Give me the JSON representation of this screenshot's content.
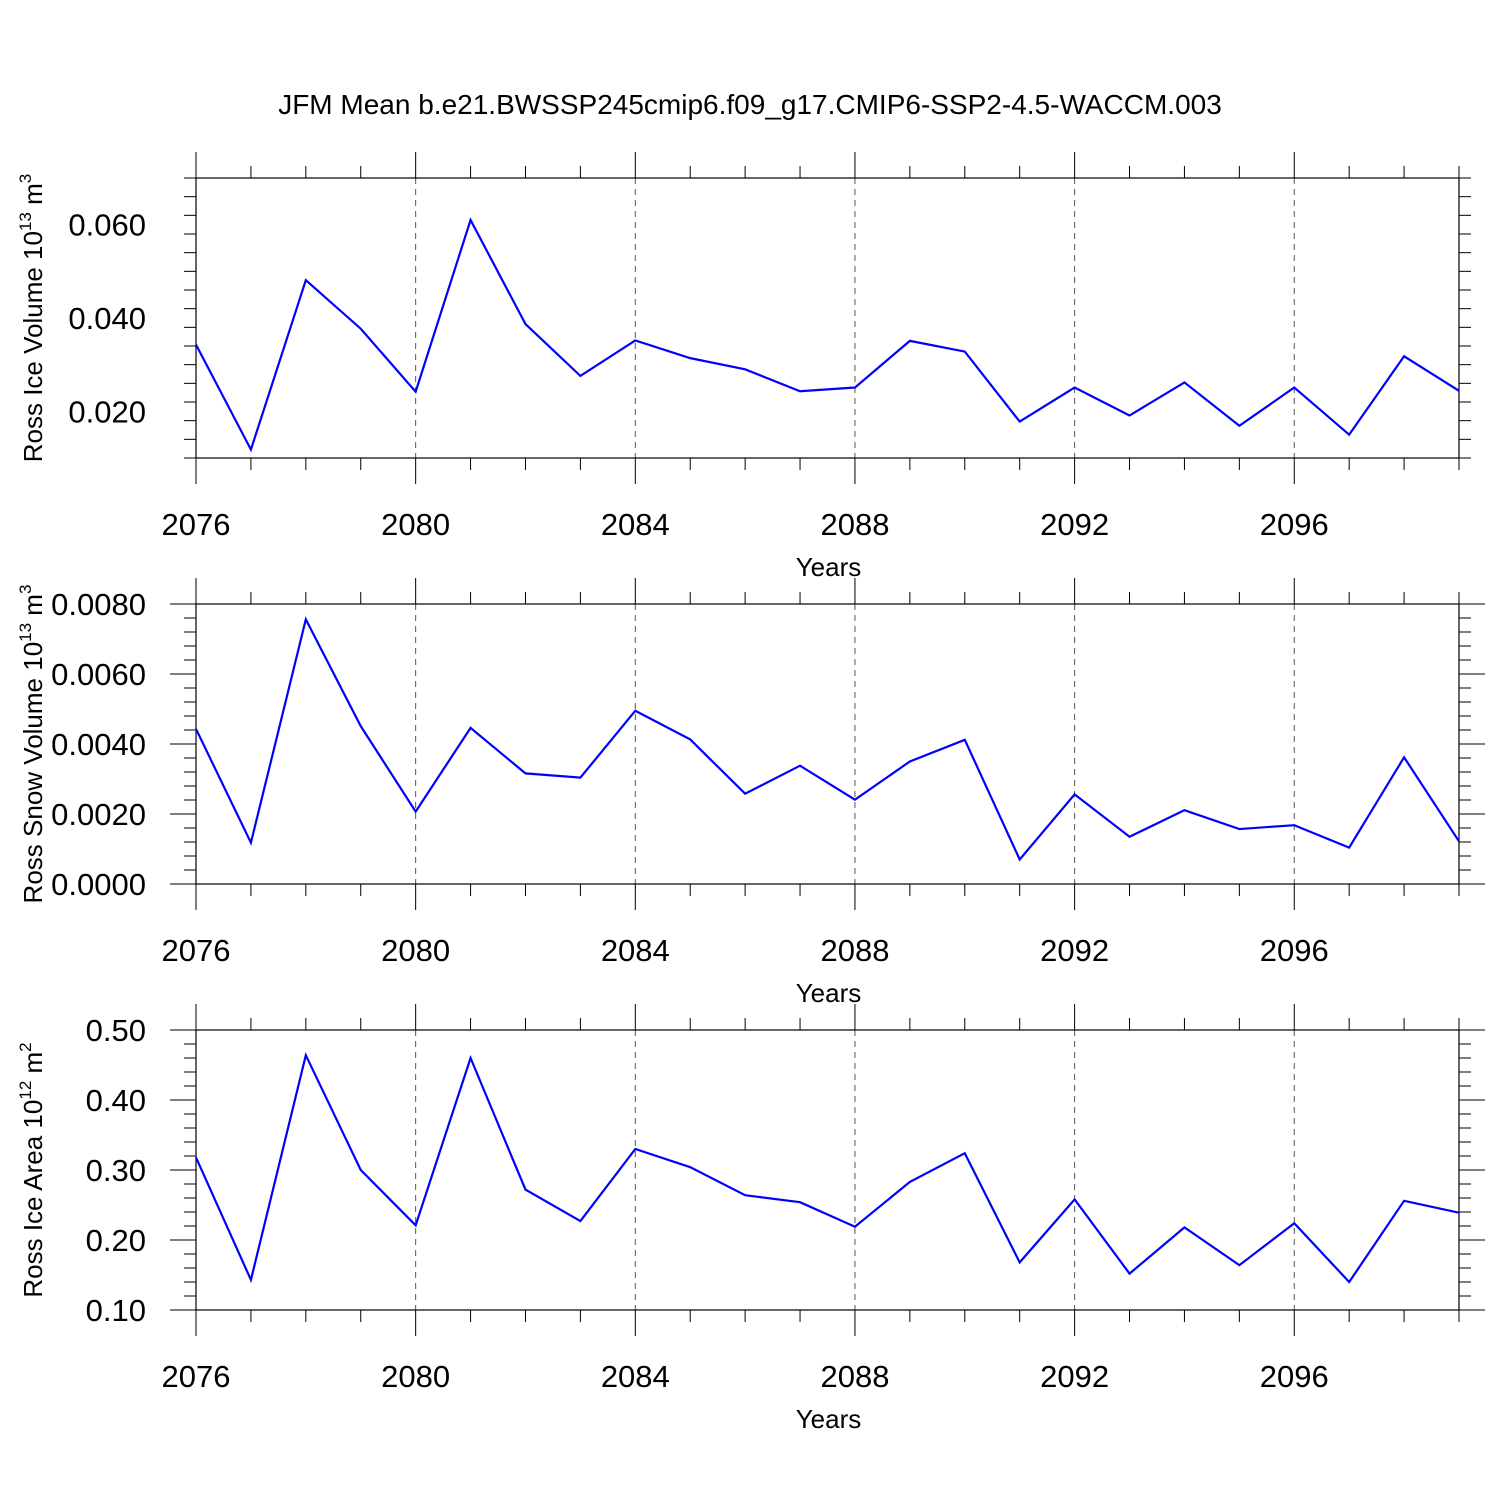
{
  "title": "JFM Mean b.e21.BWSSP245cmip6.f09_g17.CMIP6-SSP2-4.5-WACCM.003",
  "line_color": "#0000ff",
  "chart_data": [
    {
      "type": "line",
      "ylabel": "Ross Ice Volume 10",
      "ylabel_exp": "13",
      "ylabel_unit": " m",
      "ylabel_unit_exp": "3",
      "xlabel": "Years",
      "xlim": [
        2076,
        2099
      ],
      "ylim": [
        0.01,
        0.07
      ],
      "xticks": [
        2076,
        2080,
        2084,
        2088,
        2092,
        2096
      ],
      "yticks": [
        0.02,
        0.04,
        0.06
      ],
      "ytick_labels": [
        "0.020",
        "0.040",
        "0.060"
      ],
      "x": [
        2076,
        2077,
        2078,
        2079,
        2080,
        2081,
        2082,
        2083,
        2084,
        2085,
        2086,
        2087,
        2088,
        2089,
        2090,
        2091,
        2092,
        2093,
        2094,
        2095,
        2096,
        2097,
        2098,
        2099
      ],
      "series": [
        {
          "values": [
            0.0343,
            0.0118,
            0.0481,
            0.0377,
            0.0242,
            0.061,
            0.0387,
            0.0276,
            0.0352,
            0.0314,
            0.029,
            0.0243,
            0.0251,
            0.0351,
            0.0328,
            0.0178,
            0.0251,
            0.0191,
            0.0262,
            0.0169,
            0.0251,
            0.015,
            0.0318,
            0.0244
          ]
        }
      ]
    },
    {
      "type": "line",
      "ylabel": "Ross Snow Volume 10",
      "ylabel_exp": "13",
      "ylabel_unit": " m",
      "ylabel_unit_exp": "3",
      "xlabel": "Years",
      "xlim": [
        2076,
        2099
      ],
      "ylim": [
        0.0,
        0.008
      ],
      "xticks": [
        2076,
        2080,
        2084,
        2088,
        2092,
        2096
      ],
      "yticks": [
        0.0,
        0.002,
        0.004,
        0.006,
        0.008
      ],
      "ytick_labels": [
        "0.0000",
        "0.0020",
        "0.0040",
        "0.0060",
        "0.0080"
      ],
      "x": [
        2076,
        2077,
        2078,
        2079,
        2080,
        2081,
        2082,
        2083,
        2084,
        2085,
        2086,
        2087,
        2088,
        2089,
        2090,
        2091,
        2092,
        2093,
        2094,
        2095,
        2096,
        2097,
        2098,
        2099
      ],
      "series": [
        {
          "values": [
            0.00443,
            0.00118,
            0.00756,
            0.00451,
            0.00207,
            0.00446,
            0.00316,
            0.00304,
            0.00495,
            0.00413,
            0.00258,
            0.00338,
            0.00241,
            0.0035,
            0.00412,
            0.0007,
            0.00256,
            0.00135,
            0.00211,
            0.00157,
            0.00168,
            0.00104,
            0.00362,
            0.00122
          ]
        }
      ]
    },
    {
      "type": "line",
      "ylabel": "Ross Ice Area 10",
      "ylabel_exp": "12",
      "ylabel_unit": " m",
      "ylabel_unit_exp": "2",
      "xlabel": "Years",
      "xlim": [
        2076,
        2099
      ],
      "ylim": [
        0.1,
        0.5
      ],
      "xticks": [
        2076,
        2080,
        2084,
        2088,
        2092,
        2096
      ],
      "yticks": [
        0.1,
        0.2,
        0.3,
        0.4,
        0.5
      ],
      "ytick_labels": [
        "0.10",
        "0.20",
        "0.30",
        "0.40",
        "0.50"
      ],
      "x": [
        2076,
        2077,
        2078,
        2079,
        2080,
        2081,
        2082,
        2083,
        2084,
        2085,
        2086,
        2087,
        2088,
        2089,
        2090,
        2091,
        2092,
        2093,
        2094,
        2095,
        2096,
        2097,
        2098,
        2099
      ],
      "series": [
        {
          "values": [
            0.318,
            0.143,
            0.464,
            0.3,
            0.221,
            0.46,
            0.272,
            0.227,
            0.33,
            0.304,
            0.264,
            0.254,
            0.219,
            0.283,
            0.324,
            0.168,
            0.258,
            0.152,
            0.218,
            0.164,
            0.224,
            0.14,
            0.256,
            0.239
          ]
        }
      ]
    }
  ]
}
